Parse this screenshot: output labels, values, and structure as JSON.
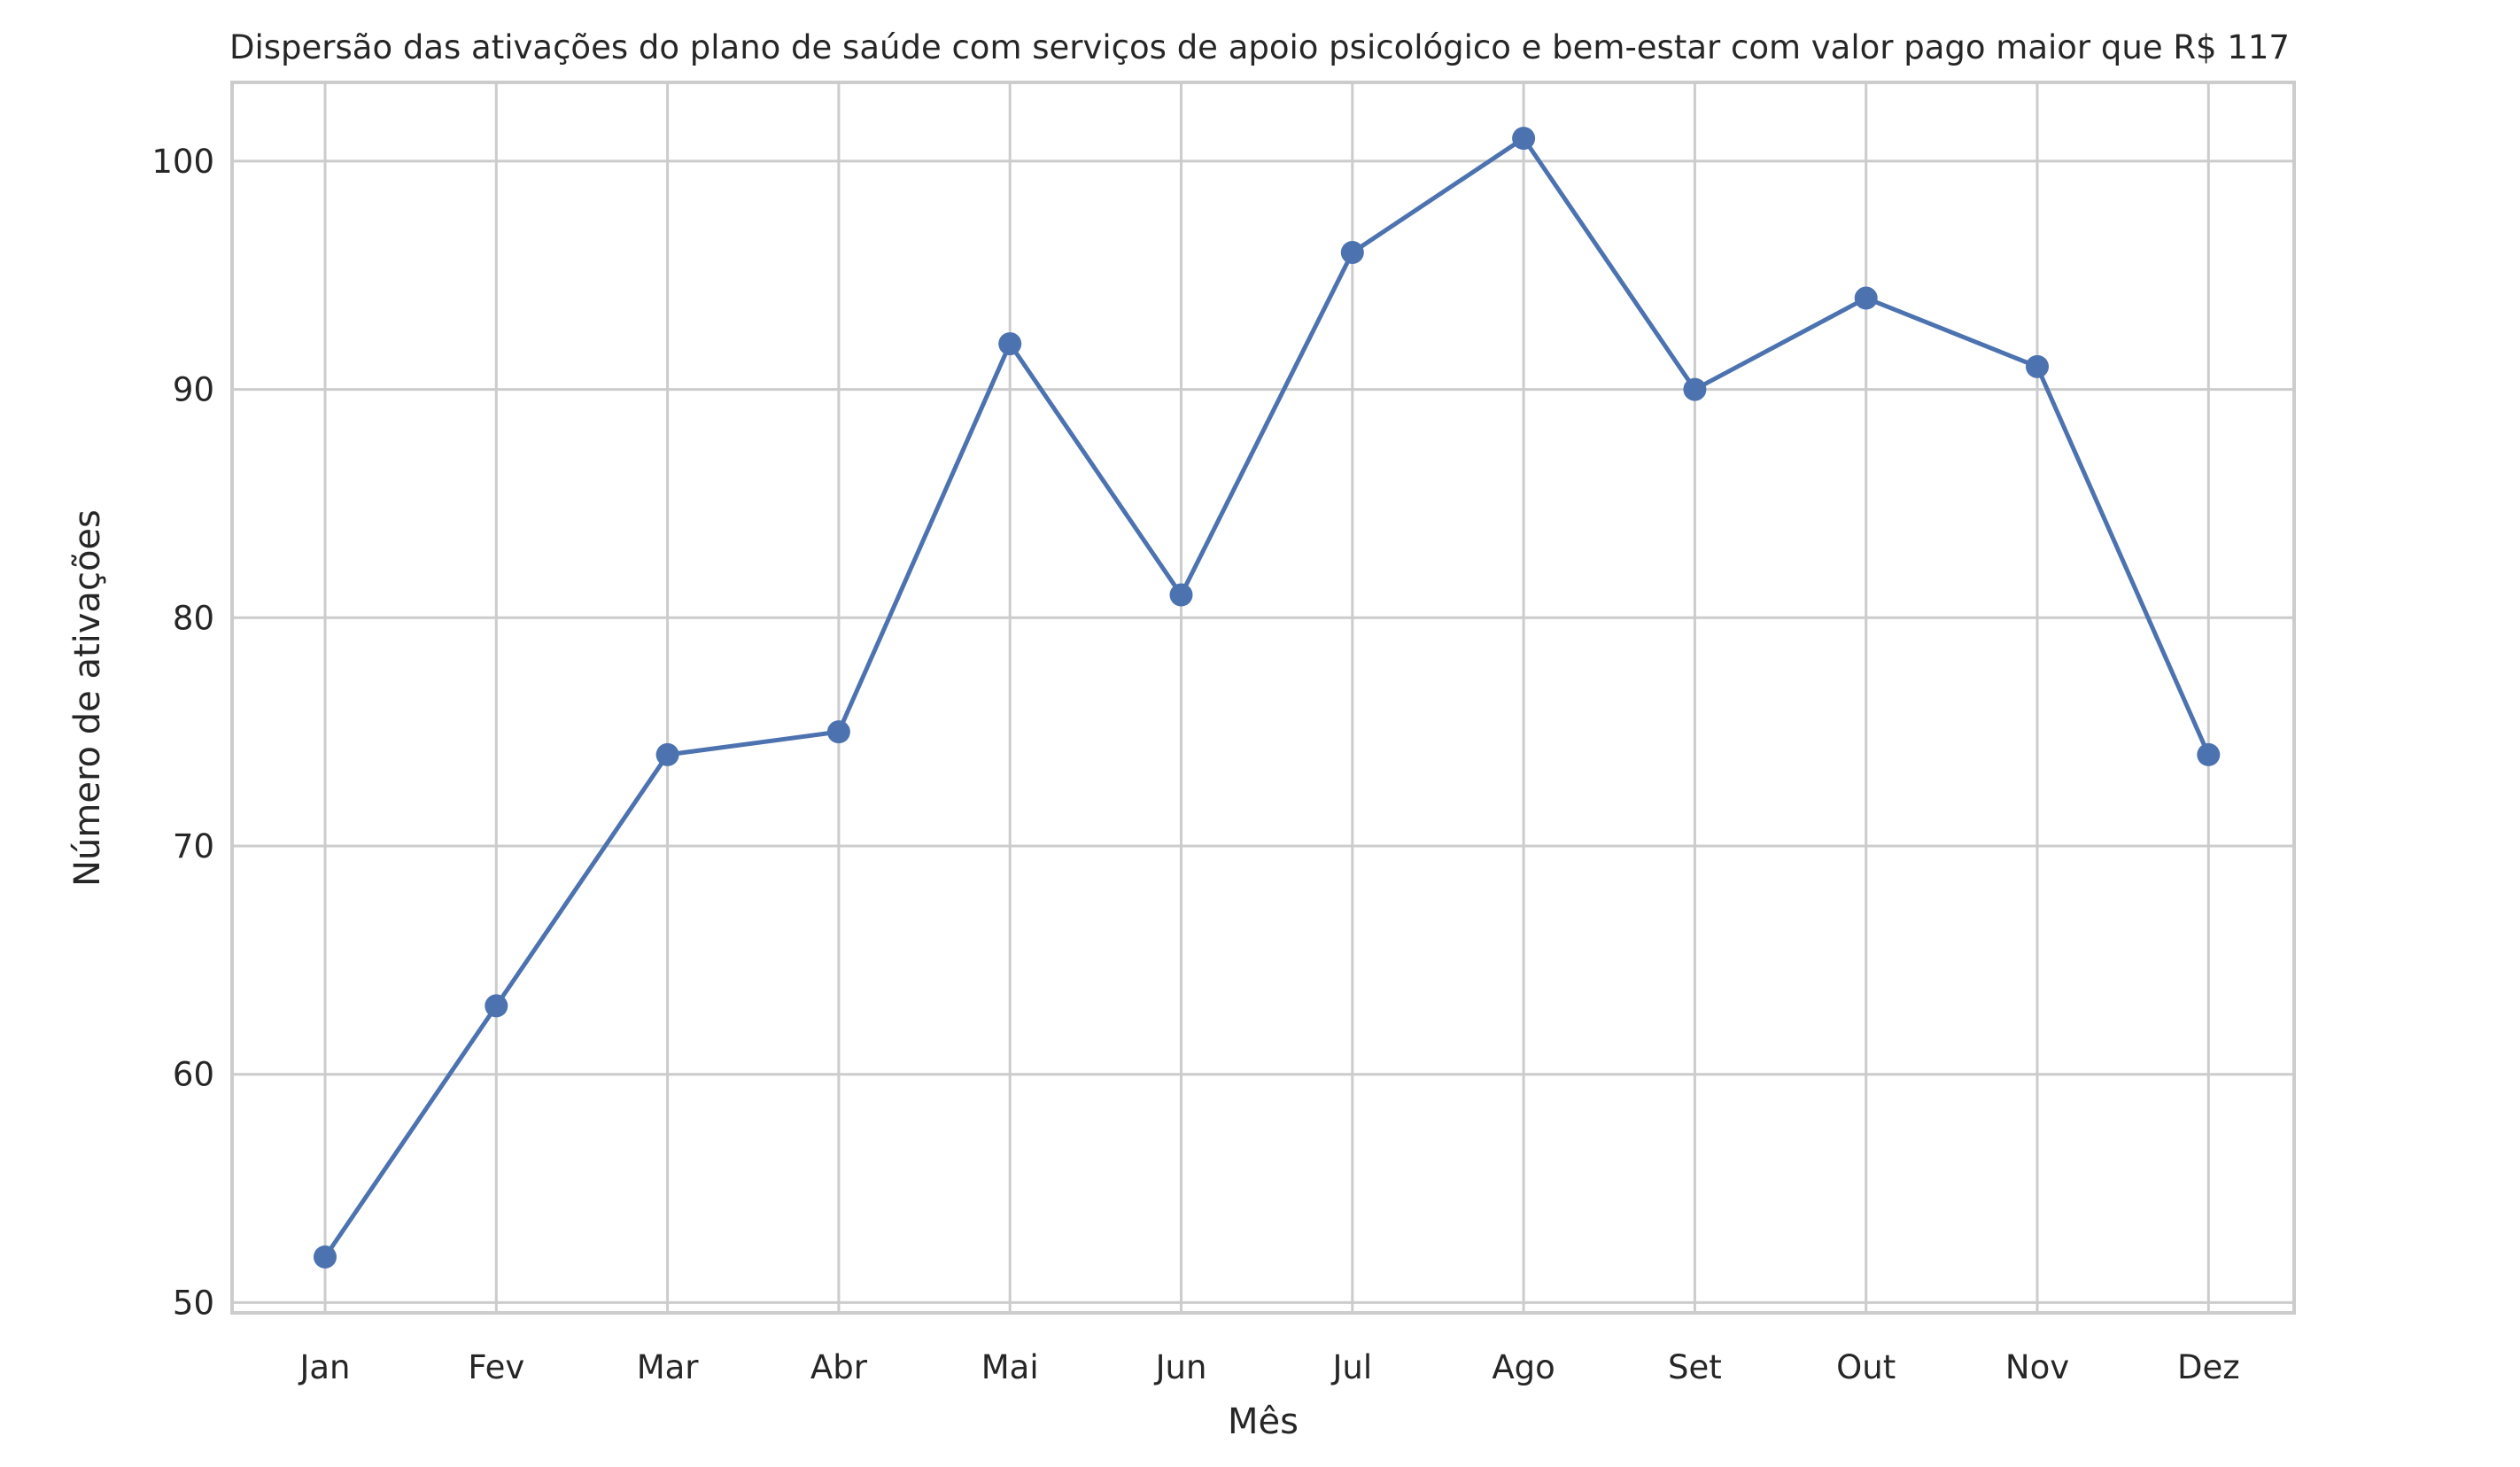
{
  "chart_data": {
    "type": "line",
    "title": "Dispersão das ativações do plano de saúde com serviços de apoio psicológico e bem-estar com valor pago maior que R$ 117",
    "xlabel": "Mês",
    "ylabel": "Número de ativações",
    "categories": [
      "Jan",
      "Fev",
      "Mar",
      "Abr",
      "Mai",
      "Jun",
      "Jul",
      "Ago",
      "Set",
      "Out",
      "Nov",
      "Dez"
    ],
    "series": [
      {
        "values": [
          52,
          63,
          74,
          75,
          92,
          81,
          96,
          101,
          90,
          94,
          91,
          74
        ],
        "color": "#4c72b0",
        "marker": "circle"
      }
    ],
    "ylim": [
      49.55,
      103.45
    ],
    "yticks": [
      "50",
      "60",
      "70",
      "80",
      "90",
      "100"
    ],
    "grid": true,
    "legend": "none"
  }
}
